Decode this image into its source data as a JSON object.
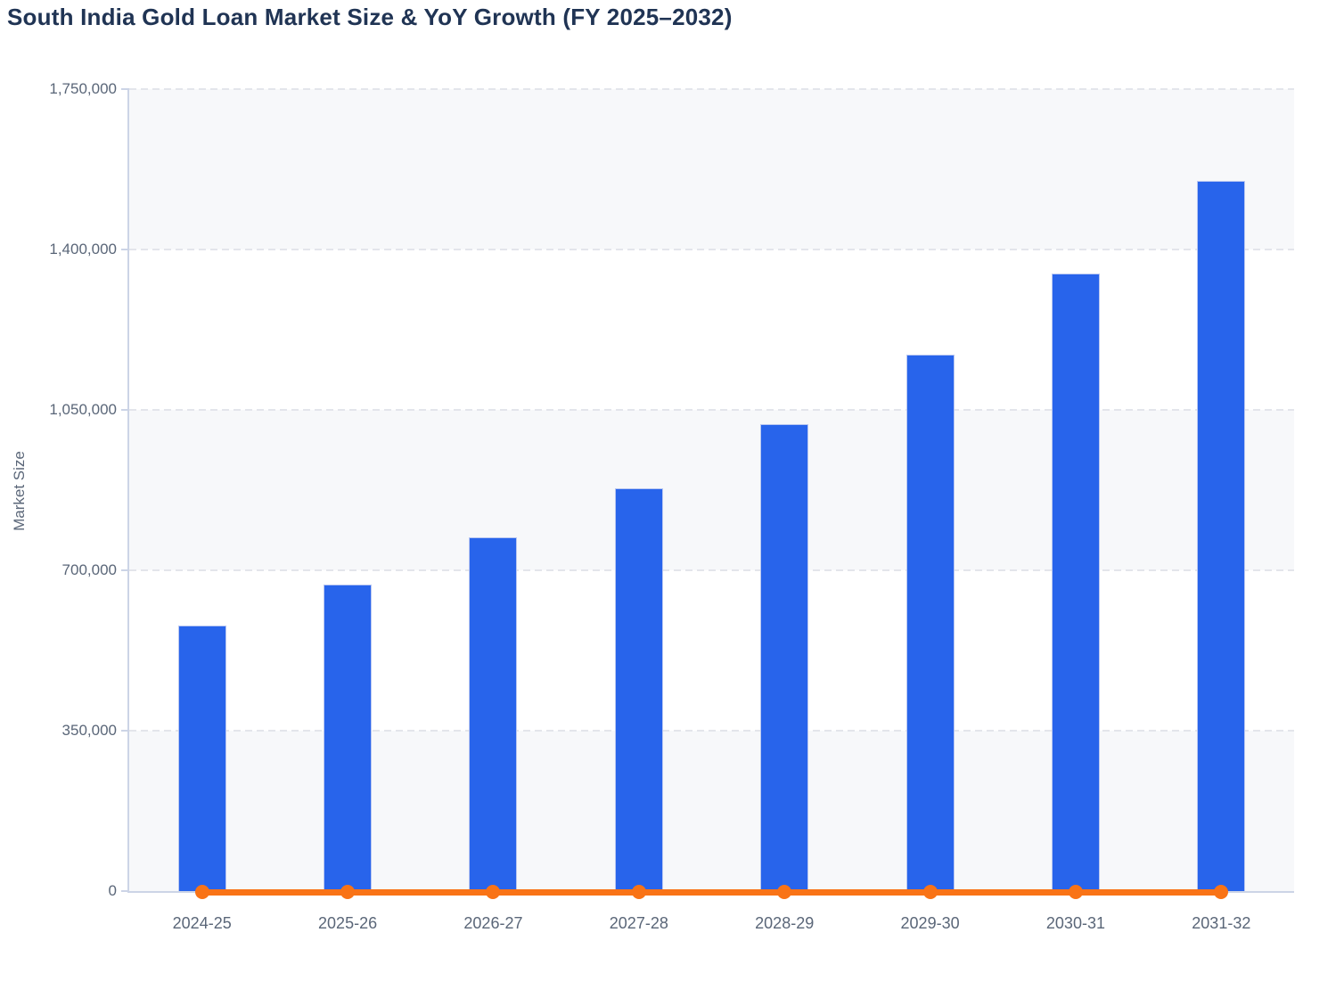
{
  "title": "South India Gold Loan Market Size & YoY Growth (FY 2025–2032)",
  "colors": {
    "background": "#ffffff",
    "bar": "#2864eb",
    "bar_border": "#b9c7f1",
    "line": "#f97316",
    "title": "#203454",
    "axis_text": "#5a6678",
    "axis_line": "#ccd4e6",
    "gridline": "#e3e5eb",
    "band": "#f7f8fa"
  },
  "chart_data": {
    "type": "bar",
    "title": "South India Gold Loan Market Size & YoY Growth (FY 2025–2032)",
    "xlabel": "",
    "ylabel": "Market Size",
    "categories": [
      "2024-25",
      "2025-26",
      "2026-27",
      "2027-28",
      "2028-29",
      "2029-30",
      "2030-31",
      "2031-32"
    ],
    "series": [
      {
        "name": "Market Size",
        "type": "bar",
        "values": [
          580000,
          668000,
          772000,
          879000,
          1019000,
          1171000,
          1347000,
          1549000
        ]
      },
      {
        "name": "YoY Growth",
        "type": "line",
        "values": [
          0,
          0,
          0,
          0,
          0,
          0,
          0,
          0
        ],
        "note": "orange line renders flat along the 0 baseline with a round marker at every fiscal year"
      }
    ],
    "ylim": [
      0,
      1750000
    ],
    "yticks": [
      0,
      350000,
      700000,
      1050000,
      1400000,
      1750000
    ],
    "ytick_labels": [
      "0",
      "350,000",
      "700,000",
      "1,050,000",
      "1,400,000",
      "1,750,000"
    ],
    "grid": "horizontal dashed gridlines",
    "split_bands": "alternating light-gray / white bands between gridlines, gray band touching baseline",
    "legend_position": "none"
  }
}
